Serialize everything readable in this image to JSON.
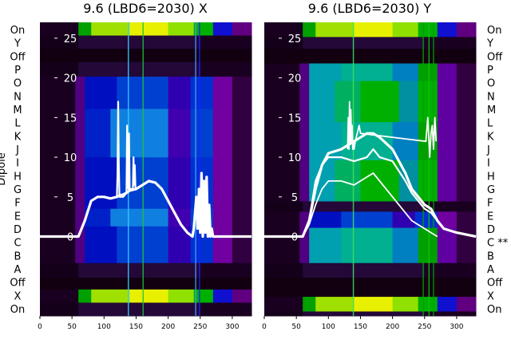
{
  "chart_data": [
    {
      "type": "heatmap",
      "title": "9.6 (LBD6=2030) X",
      "ylabel": "Dipole",
      "xlim": [
        0,
        330
      ],
      "ylim": [
        -10,
        27
      ],
      "xticks": [
        0,
        50,
        100,
        150,
        200,
        250,
        300
      ],
      "yticks": [
        0,
        5,
        10,
        15,
        20,
        25
      ],
      "row_labels": [
        "On",
        "Y",
        "Off",
        "P",
        "O",
        "N",
        "M",
        "L",
        "K",
        "J",
        "I",
        "H",
        "G",
        "F",
        "E",
        "D",
        "C",
        "B",
        "A",
        "Off",
        "X",
        "On"
      ],
      "series": [
        {
          "x": [
            0,
            60,
            70,
            80,
            90,
            100,
            110,
            120,
            125,
            130,
            135,
            140,
            150,
            160,
            170,
            180,
            190,
            200,
            210,
            220,
            230,
            238,
            240,
            242,
            244,
            246,
            248,
            250,
            252,
            254,
            256,
            258,
            260,
            262,
            264,
            266,
            268,
            270,
            280,
            300,
            330
          ],
          "y": [
            0,
            0,
            2,
            4.5,
            5,
            5,
            4.8,
            5,
            5.2,
            5.3,
            5.5,
            5.8,
            6,
            6.5,
            7,
            6.8,
            6,
            4.5,
            3,
            1.5,
            0.5,
            0,
            1,
            3,
            5,
            1,
            6,
            0.5,
            8,
            0,
            7,
            0.5,
            7.5,
            0,
            4,
            0,
            1,
            0,
            0,
            0,
            0
          ]
        },
        {
          "x": [
            120,
            121,
            122,
            123,
            124,
            130,
            135,
            136,
            137,
            138,
            139,
            140,
            145,
            146,
            147,
            148,
            149,
            150
          ],
          "y": [
            5,
            8,
            17,
            9,
            5,
            5,
            5.5,
            14,
            7,
            6,
            13,
            6,
            6,
            10,
            6.5,
            9,
            6,
            6
          ]
        }
      ]
    },
    {
      "type": "heatmap",
      "title": "9.6 (LBD6=2030) Y",
      "xlim": [
        0,
        330
      ],
      "ylim": [
        -10,
        27
      ],
      "xticks": [
        0,
        50,
        100,
        150,
        200,
        250,
        300
      ],
      "yticks": [
        0,
        5,
        10,
        15,
        20,
        25
      ],
      "row_labels": [
        "On",
        "Y",
        "Off",
        "P",
        "O",
        "N",
        "M",
        "L",
        "K",
        "J",
        "I",
        "H",
        "G",
        "F",
        "E",
        "D",
        "C **",
        "B",
        "A",
        "Off",
        "X",
        "On"
      ],
      "series": [
        {
          "x": [
            0,
            60,
            70,
            80,
            90,
            100,
            120,
            140,
            160,
            170,
            180,
            200,
            220,
            230,
            240,
            250,
            260,
            270,
            280,
            300,
            330
          ],
          "y": [
            0,
            0,
            2,
            6,
            9,
            10.5,
            11,
            12,
            13,
            13,
            12.5,
            11,
            8,
            6,
            5,
            4,
            3.5,
            2,
            1,
            0.5,
            0
          ]
        },
        {
          "x": [
            0,
            60,
            70,
            80,
            90,
            100,
            120,
            140,
            160,
            170,
            180,
            200,
            220,
            230,
            240,
            250,
            260,
            270,
            280,
            300,
            330
          ],
          "y": [
            0,
            0,
            2,
            7,
            9,
            10,
            10,
            9.5,
            10,
            11,
            10,
            9.5,
            7,
            5.5,
            4.5,
            3.5,
            3,
            2,
            1,
            0.5,
            0
          ]
        },
        {
          "x": [
            0,
            60,
            70,
            80,
            90,
            100,
            120,
            140,
            160,
            170,
            180,
            200,
            220,
            230,
            240,
            250,
            260,
            270
          ],
          "y": [
            0,
            0,
            1.5,
            4,
            6,
            7,
            7,
            6.5,
            7.5,
            8,
            7,
            5,
            3,
            2,
            1.5,
            1,
            0.5,
            0
          ]
        },
        {
          "x": [
            130,
            131,
            132,
            133,
            134,
            135,
            136,
            137,
            138,
            139,
            140,
            142,
            145,
            148,
            150,
            252,
            255,
            258,
            260,
            262,
            264,
            266,
            268
          ],
          "y": [
            11,
            15,
            11,
            17,
            12,
            16,
            12,
            14,
            11,
            12,
            11,
            12,
            13,
            14,
            13,
            12,
            15,
            10,
            13,
            14,
            11,
            15,
            12
          ]
        }
      ]
    }
  ]
}
